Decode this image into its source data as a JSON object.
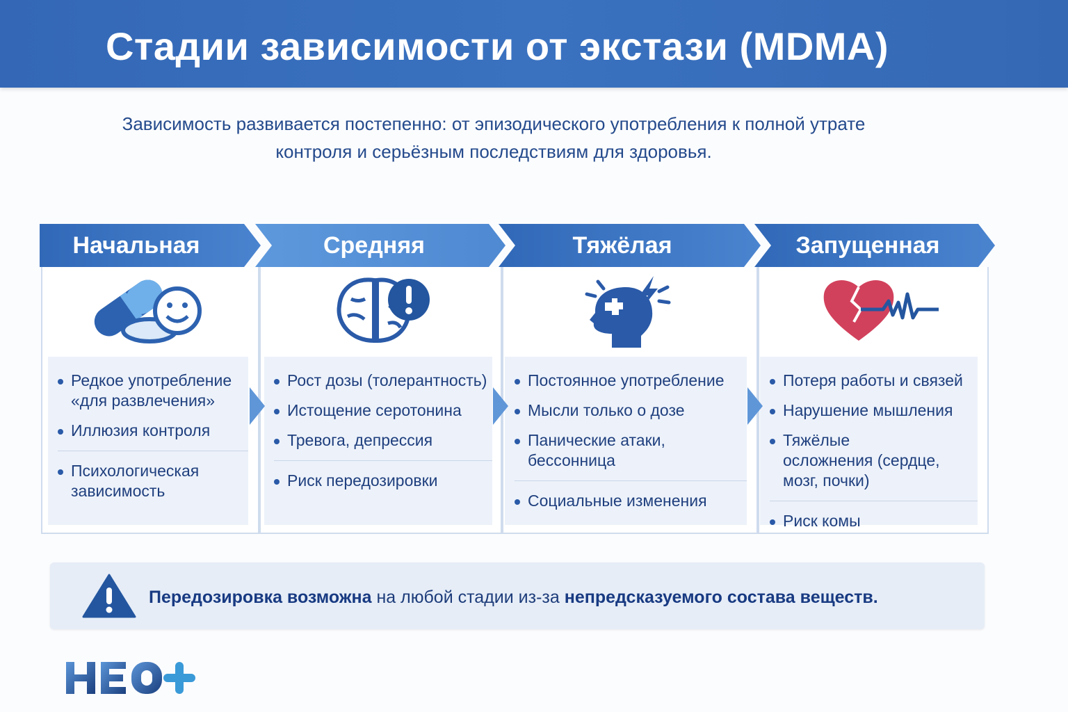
{
  "title": "Стадии зависимости от экстази (MDMA)",
  "subtitle": [
    "Зависимость развивается постепенно: от эпизодического употребления к полной утрате",
    "контроля и серьёзным последствиям для здоровья."
  ],
  "colors": {
    "header": "#3a6fbc",
    "text": "#1f3f7e",
    "heart": "#d2415c",
    "panel": "#edf2fa"
  },
  "stages": [
    {
      "label": "Начальная",
      "icon": "pills-smiley-icon",
      "items": [
        "Редкое употребление «для развлечения»",
        "Иллюзия контроля",
        "Психологическая зависимость"
      ]
    },
    {
      "label": "Средняя",
      "icon": "brain-warning-icon",
      "items": [
        "Рост дозы (толерантность)",
        "Истощение серотонина",
        "Тревога, депрессия",
        "Риск передозировки"
      ]
    },
    {
      "label": "Тяжёлая",
      "icon": "head-puzzle-lightning-icon",
      "items": [
        "Постоянное употребление",
        "Мысли только о дозе",
        "Панические атаки, бессонница",
        "Социальные изменения"
      ]
    },
    {
      "label": "Запущенная",
      "icon": "broken-heart-pulse-icon",
      "items": [
        "Потеря работы и связей",
        "Нарушение мышления",
        "Тяжёлые осложнения (сердце, мозг, почки)",
        "Риск комы"
      ]
    }
  ],
  "warning": {
    "icon": "warning-triangle-icon",
    "bold1": "Передозировка возможна",
    "text": " на любой стадии из-за ",
    "bold2": "непредсказуемого состава веществ."
  },
  "logo": {
    "text": "НЕО+"
  }
}
